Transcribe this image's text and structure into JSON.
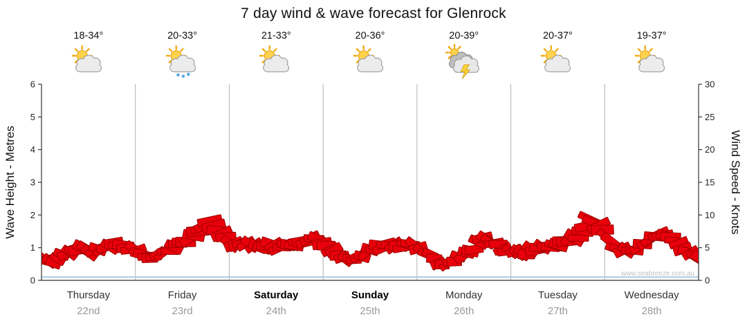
{
  "title": "7 day wind & wave forecast for Glenrock",
  "watermark": "www.seabreeze.com.au",
  "axes": {
    "left": {
      "label": "Wave Height - Metres",
      "ticks": [
        0,
        1,
        2,
        3,
        4,
        5,
        6
      ],
      "range": [
        0,
        6
      ]
    },
    "right": {
      "label": "Wind Speed - Knots",
      "ticks": [
        0,
        5,
        10,
        15,
        20,
        25,
        30
      ],
      "range": [
        0,
        30
      ]
    }
  },
  "days": [
    {
      "name": "Thursday",
      "date": "22nd",
      "temp": "18-34°",
      "icon": "sun-cloud",
      "bold": false
    },
    {
      "name": "Friday",
      "date": "23rd",
      "temp": "20-33°",
      "icon": "sun-cloud-rain",
      "bold": false
    },
    {
      "name": "Saturday",
      "date": "24th",
      "temp": "21-33°",
      "icon": "sun-cloud",
      "bold": true
    },
    {
      "name": "Sunday",
      "date": "25th",
      "temp": "20-36°",
      "icon": "sun-cloud",
      "bold": true
    },
    {
      "name": "Monday",
      "date": "26th",
      "temp": "20-39°",
      "icon": "thunderstorm",
      "bold": false
    },
    {
      "name": "Tuesday",
      "date": "27th",
      "temp": "20-37°",
      "icon": "sun-cloud",
      "bold": false
    },
    {
      "name": "Wednesday",
      "date": "28th",
      "temp": "19-37°",
      "icon": "sun-cloud",
      "bold": false
    }
  ],
  "colors": {
    "wind_fill": "#e8000b",
    "wind_edge": "#9b0000",
    "wave_line": "#a9cce3",
    "grid": "#b0b0b0",
    "axis": "#333333",
    "tick_text": "#222222",
    "date_text": "#999999",
    "watermark_text": "#c0c0c0"
  },
  "chart_data": {
    "type": "area",
    "title": "7 day wind & wave forecast for Glenrock",
    "xlabel_days": [
      "Thursday 22nd",
      "Friday 23rd",
      "Saturday 24th",
      "Sunday 25th",
      "Monday 26th",
      "Tuesday 27th",
      "Wednesday 28th"
    ],
    "points_per_day": 8,
    "left_ylabel": "Wave Height - Metres",
    "right_ylabel": "Wind Speed - Knots",
    "left_ylim": [
      0,
      6
    ],
    "right_ylim": [
      0,
      30
    ],
    "legend": "none",
    "grid": "vertical-day-separators",
    "series": [
      {
        "name": "Wind Speed (knots, red flag band)",
        "axis": "right",
        "values": [
          3.5,
          3.0,
          4.0,
          5.0,
          4.5,
          5.0,
          5.5,
          5.0,
          4.5,
          3.5,
          4.0,
          5.0,
          6.0,
          7.5,
          9.0,
          7.0,
          5.5,
          5.5,
          5.0,
          5.5,
          5.0,
          5.5,
          6.0,
          6.5,
          5.0,
          3.5,
          3.0,
          4.0,
          5.0,
          5.5,
          5.0,
          5.5,
          4.5,
          3.0,
          2.5,
          3.5,
          4.5,
          6.5,
          5.5,
          4.5,
          4.0,
          4.5,
          5.0,
          5.5,
          6.0,
          6.5,
          9.5,
          7.5,
          5.0,
          4.5,
          5.0,
          6.5,
          7.0,
          6.0,
          4.5,
          3.5
        ]
      },
      {
        "name": "Wave Height (metres, flat light-blue line)",
        "axis": "left",
        "values": [
          0.1,
          0.1,
          0.1,
          0.1,
          0.1,
          0.1,
          0.1,
          0.1
        ]
      }
    ]
  }
}
